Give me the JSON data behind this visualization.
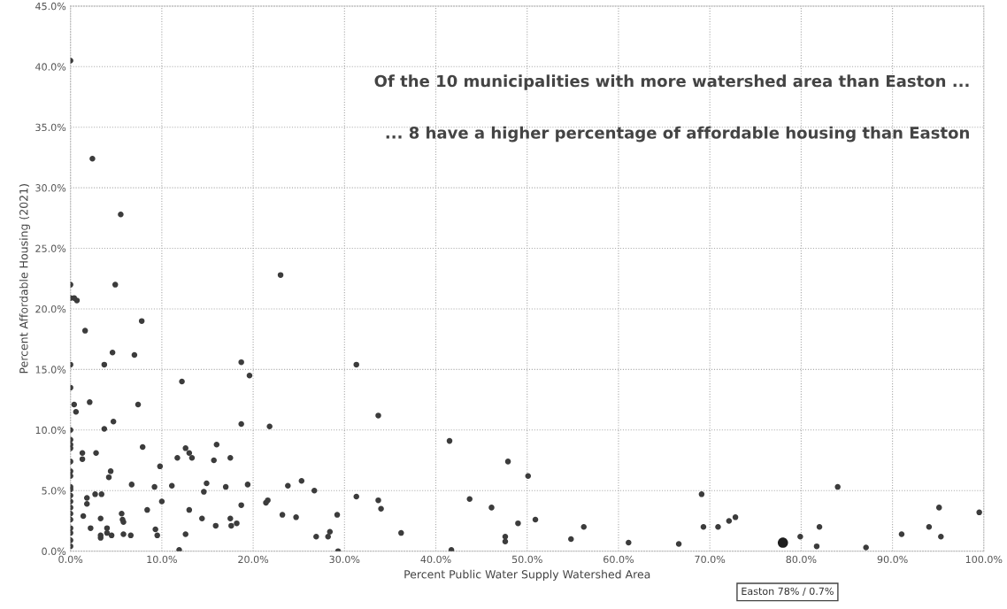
{
  "chart_data": {
    "type": "scatter",
    "xlabel": "Percent Public Water Supply Watershed Area",
    "ylabel": "Percent Affordable Housing (2021)",
    "annotations": [
      "Of the 10 municipalities with more watershed area than Easton ...",
      "... 8 have a higher percentage of affordable housing than Easton",
      "Easton 78% / 0.7%"
    ],
    "xlim": [
      0,
      100
    ],
    "ylim": [
      0,
      45
    ],
    "xticks": [
      {
        "value": 0,
        "label": "0.0%"
      },
      {
        "value": 10,
        "label": "10.0%"
      },
      {
        "value": 20,
        "label": "20.0%"
      },
      {
        "value": 30,
        "label": "30.0%"
      },
      {
        "value": 40,
        "label": "40.0%"
      },
      {
        "value": 50,
        "label": "50.0%"
      },
      {
        "value": 60,
        "label": "60.0%"
      },
      {
        "value": 70,
        "label": "70.0%"
      },
      {
        "value": 80,
        "label": "80.0%"
      },
      {
        "value": 90,
        "label": "90.0%"
      },
      {
        "value": 100,
        "label": "100.0%"
      }
    ],
    "yticks": [
      {
        "value": 0,
        "label": "0.0%"
      },
      {
        "value": 5,
        "label": "5.0%"
      },
      {
        "value": 10,
        "label": "10.0%"
      },
      {
        "value": 15,
        "label": "15.0%"
      },
      {
        "value": 20,
        "label": "20.0%"
      },
      {
        "value": 25,
        "label": "25.0%"
      },
      {
        "value": 30,
        "label": "30.0%"
      },
      {
        "value": 35,
        "label": "35.0%"
      },
      {
        "value": 40,
        "label": "40.0%"
      },
      {
        "value": 45,
        "label": "45.0%"
      }
    ],
    "grid": true,
    "marker": "circle",
    "series": [
      {
        "color": "#3c3c3c",
        "x": [
          0,
          2.4,
          5.5,
          23.0,
          0,
          4.9,
          0,
          0.7,
          0.4,
          7.8,
          1.6,
          4.6,
          7.0,
          0,
          3.7,
          18.7,
          19.6,
          12.2,
          0,
          0.4,
          0.6,
          2.1,
          7.4,
          4.7,
          3.7,
          18.7,
          21.8,
          0,
          0,
          0,
          0,
          0,
          0,
          0,
          0,
          0,
          0,
          0,
          0,
          0,
          0,
          0,
          0,
          0,
          0,
          1.3,
          1.3,
          2.8,
          7.9,
          12.6,
          13.0,
          13.3,
          16.0,
          11.7,
          15.7,
          17.5,
          9.8,
          4.4,
          4.2,
          6.7,
          9.2,
          11.1,
          14.9,
          14.6,
          17.0,
          19.4,
          23.8,
          25.3,
          26.7,
          2.7,
          3.4,
          1.8,
          1.8,
          10.0,
          8.4,
          13.0,
          18.7,
          21.4,
          21.6,
          23.2,
          24.7,
          1.4,
          3.3,
          5.6,
          5.7,
          5.8,
          14.4,
          17.5,
          18.2,
          17.6,
          15.9,
          2.2,
          4.0,
          3.3,
          3.3,
          4.5,
          4.0,
          5.8,
          6.6,
          9.3,
          9.5,
          12.6,
          11.9,
          26.9,
          28.2,
          28.4,
          31.3,
          33.7,
          41.5,
          47.9,
          50.1,
          31.3,
          33.7,
          34.0,
          29.2,
          36.2,
          29.3,
          43.7,
          46.1,
          49.0,
          50.9,
          47.6,
          47.6,
          41.7,
          54.8,
          56.2,
          61.1,
          66.6,
          69.1,
          69.3,
          70.9,
          72.1,
          72.8,
          79.9,
          82.0,
          81.7,
          84.0,
          87.1,
          91.0,
          94.0,
          95.1,
          95.3,
          99.5
        ],
        "values": [
          40.5,
          32.4,
          27.8,
          22.8,
          22.0,
          22.0,
          20.9,
          20.7,
          20.9,
          19.0,
          18.2,
          16.4,
          16.2,
          15.4,
          15.4,
          15.6,
          14.5,
          14.0,
          13.5,
          12.1,
          11.5,
          12.3,
          12.1,
          10.7,
          10.1,
          10.5,
          10.3,
          10.0,
          9.2,
          8.8,
          8.5,
          7.4,
          6.6,
          6.2,
          5.3,
          5.1,
          4.6,
          4.1,
          3.6,
          3.1,
          2.6,
          1.9,
          1.5,
          0.9,
          0.4,
          8.1,
          7.6,
          8.1,
          8.6,
          8.5,
          8.1,
          7.7,
          8.8,
          7.7,
          7.5,
          7.7,
          7.0,
          6.6,
          6.1,
          5.5,
          5.3,
          5.4,
          5.6,
          4.9,
          5.3,
          5.5,
          5.4,
          5.8,
          5.0,
          4.7,
          4.7,
          4.4,
          3.9,
          4.1,
          3.4,
          3.4,
          3.8,
          4.0,
          4.2,
          3.0,
          2.8,
          2.9,
          2.7,
          3.1,
          2.6,
          2.4,
          2.7,
          2.7,
          2.3,
          2.1,
          2.1,
          1.9,
          1.9,
          1.3,
          1.1,
          1.3,
          1.5,
          1.4,
          1.3,
          1.8,
          1.3,
          1.4,
          0.1,
          1.2,
          1.2,
          1.6,
          15.4,
          11.2,
          9.1,
          7.4,
          6.2,
          4.5,
          4.2,
          3.5,
          3.0,
          1.5,
          0.0,
          4.3,
          3.6,
          2.3,
          2.6,
          1.2,
          0.8,
          0.1,
          1.0,
          2.0,
          0.7,
          0.6,
          4.7,
          2.0,
          2.0,
          2.5,
          2.8,
          1.2,
          2.0,
          0.4,
          5.3,
          0.3,
          1.4,
          2.0,
          3.6,
          1.2,
          3.2
        ]
      },
      {
        "color": "#1e1e1e",
        "x": [
          78
        ],
        "values": [
          0.7
        ]
      }
    ]
  }
}
